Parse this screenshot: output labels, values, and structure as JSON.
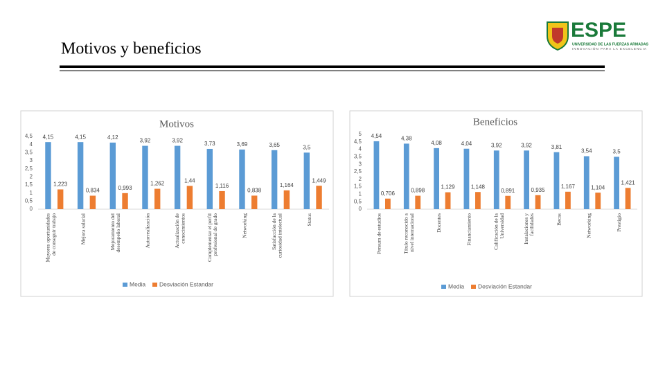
{
  "header": {
    "title": "Motivos y beneficios",
    "logo_name": "ESPE",
    "logo_line1": "UNIVERSIDAD DE LAS FUERZAS ARMADAS",
    "logo_line2": "INNOVACIÓN PARA LA EXCELENCIA"
  },
  "chart_data": [
    {
      "type": "bar",
      "title": "Motivos",
      "categories": [
        "Mayores oportunidades de conseguir trabajo",
        "Mejora salarial",
        "Mejoramiento del desempeño laboral",
        "Autorrealización",
        "Actualización de conocimientos",
        "Complementar el perfil profesional de grado",
        "Networking",
        "Satisfacción de la curiosidad intelectual",
        "Status"
      ],
      "series": [
        {
          "name": "Media",
          "color": "#5b9bd5",
          "values": [
            4.15,
            4.15,
            4.12,
            3.92,
            3.92,
            3.73,
            3.69,
            3.65,
            3.5
          ],
          "value_labels": [
            "4,15",
            "4,15",
            "4,12",
            "3,92",
            "3,92",
            "3,73",
            "3,69",
            "3,65",
            "3,5"
          ]
        },
        {
          "name": "Desviación Estandar",
          "color": "#ed7d31",
          "values": [
            1.223,
            0.834,
            0.993,
            1.262,
            1.44,
            1.116,
            0.838,
            1.164,
            1.449
          ],
          "value_labels": [
            "1,223",
            "0,834",
            "0,993",
            "1,262",
            "1,44",
            "1,116",
            "0,838",
            "1,164",
            "1,449"
          ]
        }
      ],
      "ylim": [
        0,
        4.5
      ],
      "yticks": [
        0,
        {
          "value": 0.5,
          "label": "0,5"
        },
        1,
        {
          "value": 1.5,
          "label": "1,5"
        },
        2,
        {
          "value": 2.5,
          "label": "2,5"
        },
        3,
        {
          "value": 3.5,
          "label": "3,5"
        },
        4,
        {
          "value": 4.5,
          "label": "4,5"
        }
      ],
      "legend": "bottom",
      "grid": false
    },
    {
      "type": "bar",
      "title": "Beneficios",
      "categories": [
        "Pensum de estudios",
        "Título reconocido a nivel internacional",
        "Docentes",
        "Financiamiento",
        "Calificación de la Universidad",
        "Instalaciones y facilidades",
        "Becas",
        "Networking",
        "Prestigio"
      ],
      "series": [
        {
          "name": "Media",
          "color": "#5b9bd5",
          "values": [
            4.54,
            4.38,
            4.08,
            4.04,
            3.92,
            3.92,
            3.81,
            3.54,
            3.5
          ],
          "value_labels": [
            "4,54",
            "4,38",
            "4,08",
            "4,04",
            "3,92",
            "3,92",
            "3,81",
            "3,54",
            "3,5"
          ]
        },
        {
          "name": "Desviación Estandar",
          "color": "#ed7d31",
          "values": [
            0.706,
            0.898,
            1.129,
            1.148,
            0.891,
            0.935,
            1.167,
            1.104,
            1.421
          ],
          "value_labels": [
            "0,706",
            "0,898",
            "1,129",
            "1,148",
            "0,891",
            "0,935",
            "1,167",
            "1,104",
            "1,421"
          ]
        }
      ],
      "ylim": [
        0,
        5
      ],
      "yticks": [
        0,
        {
          "value": 0.5,
          "label": "0,5"
        },
        1,
        {
          "value": 1.5,
          "label": "1,5"
        },
        2,
        {
          "value": 2.5,
          "label": "2,5"
        },
        3,
        {
          "value": 3.5,
          "label": "3,5"
        },
        4,
        {
          "value": 4.5,
          "label": "4,5"
        },
        5
      ],
      "legend": "bottom",
      "grid": false
    }
  ]
}
